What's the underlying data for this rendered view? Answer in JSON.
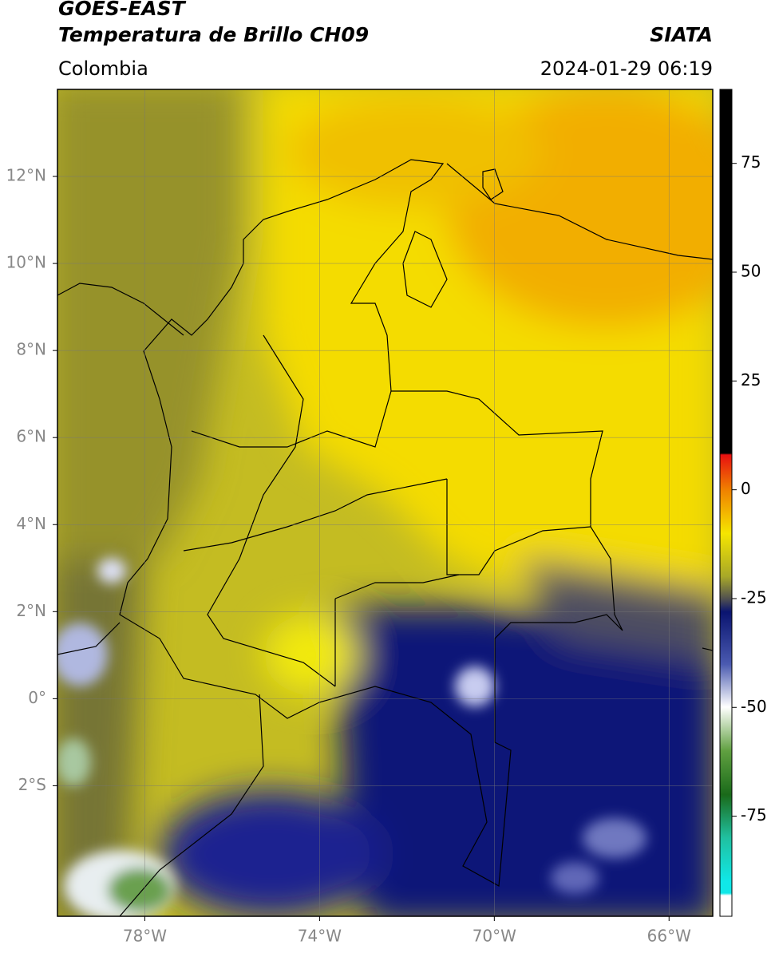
{
  "header": {
    "title": "GOES-EAST",
    "subtitle": "Temperatura de Brillo CH09",
    "source": "SIATA",
    "region": "Colombia",
    "datetime": "2024-01-29 06:19"
  },
  "map": {
    "xlim": [
      -80,
      -65
    ],
    "ylim": [
      -5,
      14
    ],
    "xticks": [
      {
        "value": -78,
        "label": "78°W"
      },
      {
        "value": -74,
        "label": "74°W"
      },
      {
        "value": -70,
        "label": "70°W"
      },
      {
        "value": -66,
        "label": "66°W"
      }
    ],
    "yticks": [
      {
        "value": 12,
        "label": "12°N"
      },
      {
        "value": 10,
        "label": "10°N"
      },
      {
        "value": 8,
        "label": "8°N"
      },
      {
        "value": 6,
        "label": "6°N"
      },
      {
        "value": 4,
        "label": "4°N"
      },
      {
        "value": 2,
        "label": "2°N"
      },
      {
        "value": 0,
        "label": "0°"
      },
      {
        "value": -2,
        "label": "2°S"
      }
    ],
    "grid": true
  },
  "colorbar": {
    "lim": [
      -98,
      92
    ],
    "ticks": [
      75,
      50,
      25,
      0,
      -25,
      -50,
      -75
    ]
  }
}
